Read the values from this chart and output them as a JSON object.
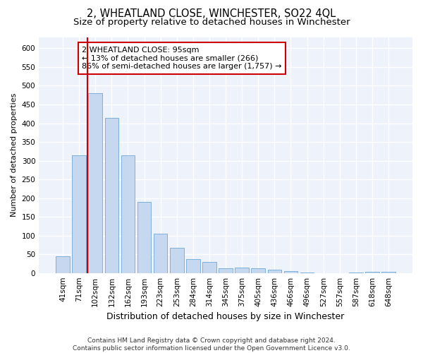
{
  "title": "2, WHEATLAND CLOSE, WINCHESTER, SO22 4QL",
  "subtitle": "Size of property relative to detached houses in Winchester",
  "xlabel": "Distribution of detached houses by size in Winchester",
  "ylabel": "Number of detached properties",
  "bar_labels": [
    "41sqm",
    "71sqm",
    "102sqm",
    "132sqm",
    "162sqm",
    "193sqm",
    "223sqm",
    "253sqm",
    "284sqm",
    "314sqm",
    "345sqm",
    "375sqm",
    "405sqm",
    "436sqm",
    "466sqm",
    "496sqm",
    "527sqm",
    "557sqm",
    "587sqm",
    "618sqm",
    "648sqm"
  ],
  "bar_values": [
    45,
    315,
    480,
    415,
    315,
    190,
    105,
    68,
    37,
    30,
    13,
    15,
    13,
    8,
    5,
    2,
    0,
    0,
    2,
    4,
    3
  ],
  "bar_color": "#c5d8f0",
  "bar_edgecolor": "#6fa8d6",
  "vline_color": "#cc0000",
  "vline_x": 1.5,
  "annotation_text": "2 WHEATLAND CLOSE: 95sqm\n← 13% of detached houses are smaller (266)\n86% of semi-detached houses are larger (1,757) →",
  "annotation_box_facecolor": "#ffffff",
  "annotation_box_edgecolor": "#cc0000",
  "ylim": [
    0,
    630
  ],
  "yticks": [
    0,
    50,
    100,
    150,
    200,
    250,
    300,
    350,
    400,
    450,
    500,
    550,
    600
  ],
  "footnote": "Contains HM Land Registry data © Crown copyright and database right 2024.\nContains public sector information licensed under the Open Government Licence v3.0.",
  "background_color": "#edf2fb",
  "grid_color": "#ffffff",
  "title_fontsize": 10.5,
  "subtitle_fontsize": 9.5,
  "xlabel_fontsize": 9,
  "ylabel_fontsize": 8,
  "tick_fontsize": 7.5,
  "annotation_fontsize": 8,
  "footnote_fontsize": 6.5
}
